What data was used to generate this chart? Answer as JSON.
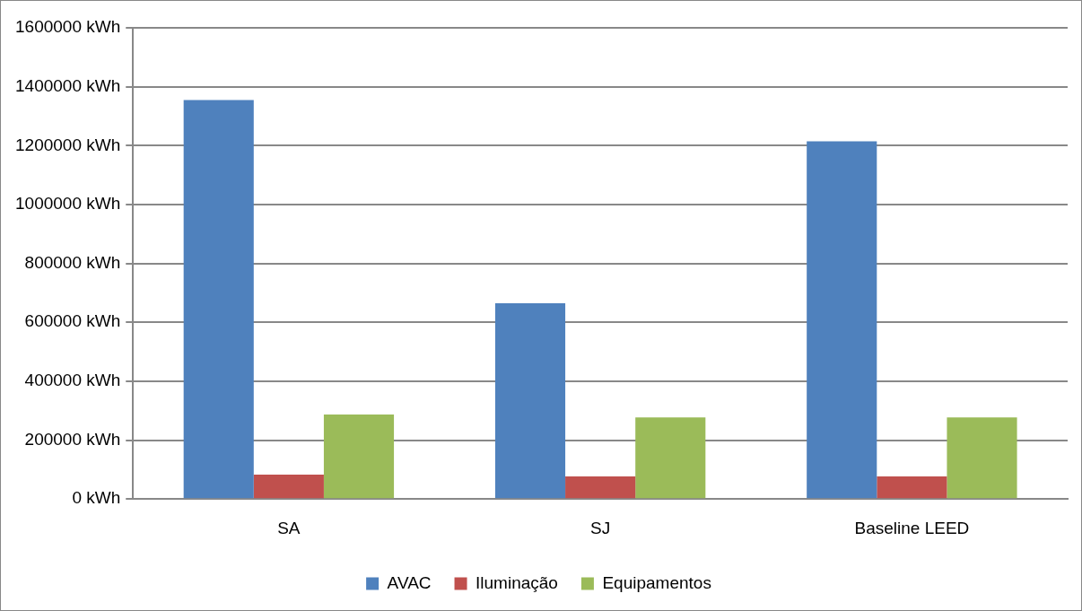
{
  "chart_data": {
    "type": "bar",
    "categories": [
      "SA",
      "SJ",
      "Baseline LEED"
    ],
    "series": [
      {
        "name": "AVAC",
        "color": "#4f81bd",
        "values": [
          1355000,
          665000,
          1215000
        ]
      },
      {
        "name": "Iluminação",
        "color": "#c0504d",
        "values": [
          83000,
          77000,
          77000
        ]
      },
      {
        "name": "Equipamentos",
        "color": "#9bbb59",
        "values": [
          287000,
          277000,
          277000
        ]
      }
    ],
    "ylim": [
      0,
      1600000
    ],
    "yticks": [
      {
        "value": 0,
        "label": "0 kWh"
      },
      {
        "value": 200000,
        "label": "200000 kWh"
      },
      {
        "value": 400000,
        "label": "400000 kWh"
      },
      {
        "value": 600000,
        "label": "600000 kWh"
      },
      {
        "value": 800000,
        "label": "800000 kWh"
      },
      {
        "value": 1000000,
        "label": "1000000 kWh"
      },
      {
        "value": 1200000,
        "label": "1200000 kWh"
      },
      {
        "value": 1400000,
        "label": "1400000 kWh"
      },
      {
        "value": 1600000,
        "label": "1600000 kWh"
      }
    ],
    "grid": "y",
    "legend": "bottom"
  }
}
